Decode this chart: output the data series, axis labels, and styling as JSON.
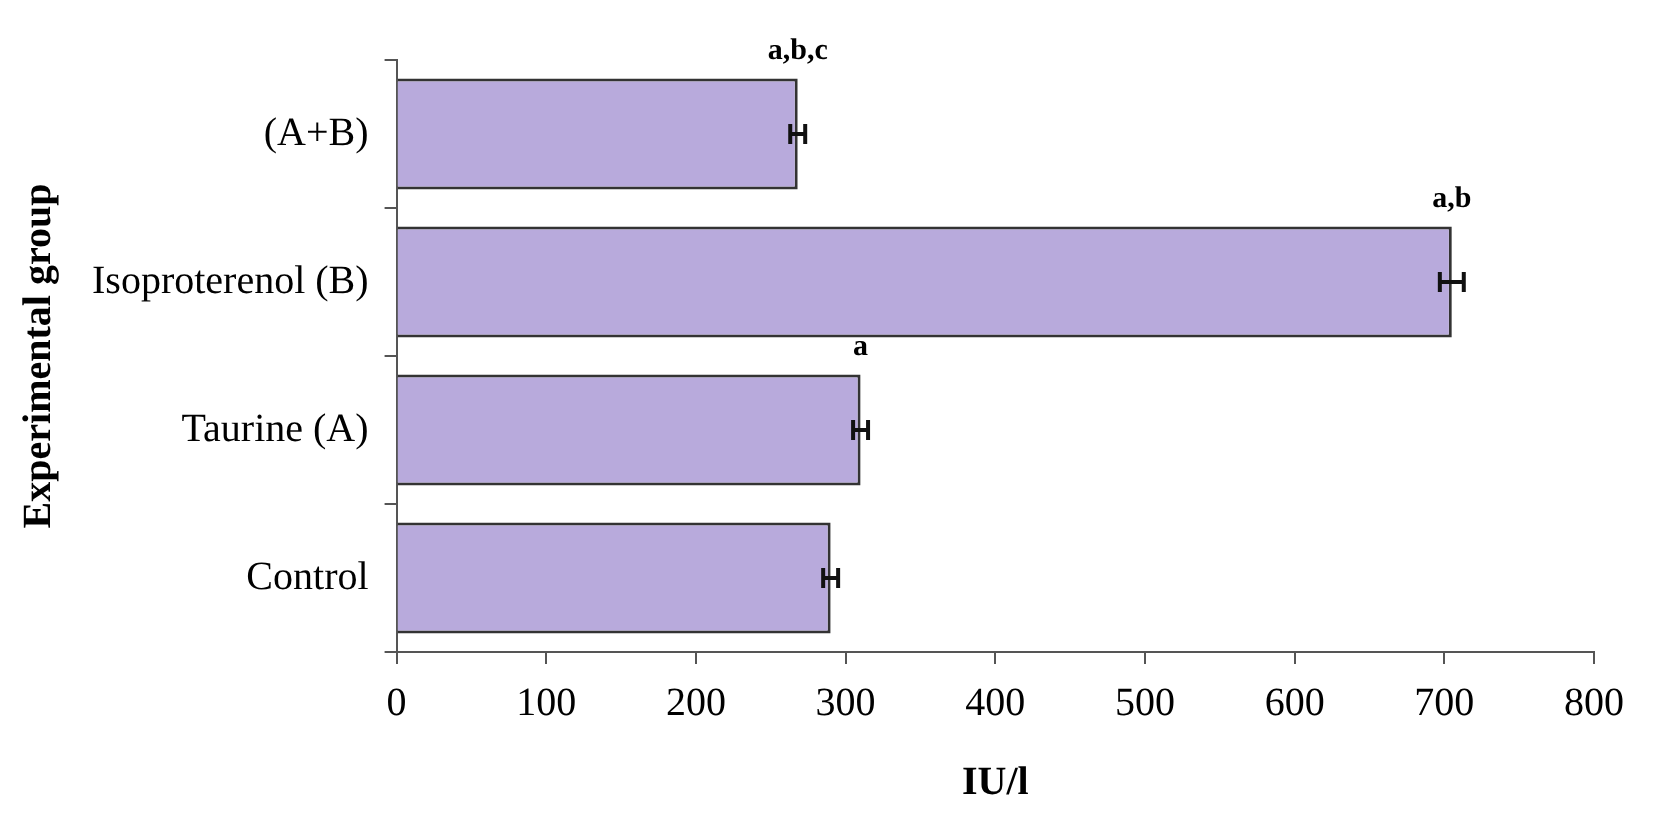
{
  "chart_data": {
    "type": "bar",
    "orientation": "horizontal",
    "xlabel": "IU/l",
    "ylabel": "Experimental group",
    "categories": [
      "(A+B)",
      "Isoproterenol (B)",
      "Taurine (A)",
      "Control"
    ],
    "values": [
      268,
      705,
      310,
      290
    ],
    "errors": [
      5,
      8,
      5,
      5
    ],
    "color": "#b8aadc",
    "xlim": [
      0,
      800
    ],
    "xticks": [
      0,
      100,
      200,
      300,
      400,
      500,
      600,
      700,
      800
    ],
    "grid": false,
    "legend": false,
    "annotations": [
      {
        "text": "a,b,c",
        "x": 268,
        "y": "(A+B)"
      },
      {
        "text": "a,b",
        "x": 705,
        "y": "Isoproterenol (B)"
      },
      {
        "text": "a",
        "x": 310,
        "y": "Taurine (A)"
      }
    ]
  }
}
